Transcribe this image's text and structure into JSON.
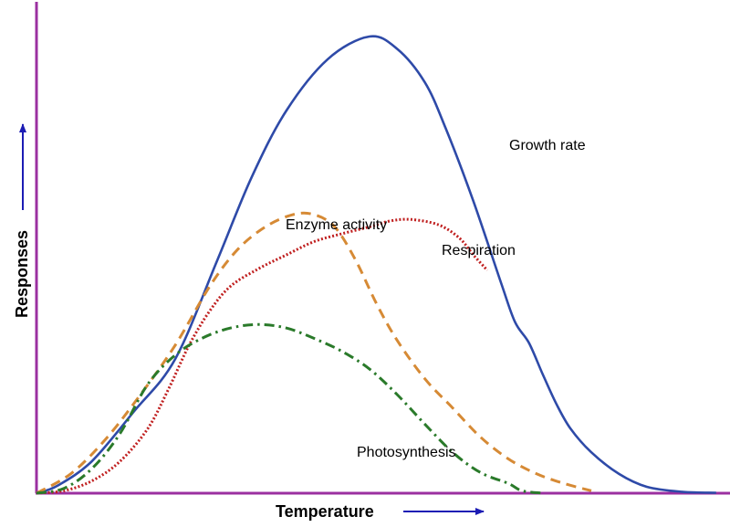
{
  "chart_data": {
    "type": "line",
    "title": "",
    "xlabel": "Temperature",
    "ylabel": "Responses",
    "xlim": [
      0,
      100
    ],
    "ylim": [
      0,
      100
    ],
    "grid": false,
    "legend": "none (inline curve labels)",
    "colors": {
      "axis": "#9b30a0",
      "arrow": "#1c1cb4"
    },
    "series": [
      {
        "name": "Growth rate",
        "color": "#2e4aa8",
        "dash": "solid",
        "x": [
          0,
          3,
          8,
          14,
          20,
          26,
          31,
          36,
          42,
          48,
          52,
          56,
          59,
          63,
          67,
          69,
          71,
          73,
          75,
          77,
          80,
          84,
          88,
          93,
          98
        ],
        "y": [
          0,
          1.5,
          6.5,
          16.5,
          27.2,
          47,
          64,
          77.5,
          88,
          92.6,
          90.1,
          83.3,
          74,
          59.2,
          42.6,
          34.7,
          30.5,
          24.1,
          18,
          13.1,
          8.3,
          3.9,
          1.3,
          0.3,
          0.1
        ]
      },
      {
        "name": "Enzyme activity",
        "color": "#d68a35",
        "dash": "dashed",
        "x": [
          0,
          5,
          10,
          15,
          20,
          25,
          29,
          33,
          37,
          40,
          43,
          46,
          49,
          52,
          56,
          60,
          64,
          68,
          72,
          76,
          80
        ],
        "y": [
          0,
          4,
          11,
          20,
          30,
          42,
          49.4,
          54,
          56.5,
          56.5,
          54,
          47.3,
          38.5,
          31,
          23.2,
          17.3,
          11.4,
          7,
          4,
          2,
          0.5
        ]
      },
      {
        "name": "Respiration",
        "color": "#c02020",
        "dash": "dotted",
        "x": [
          0,
          4,
          8,
          12,
          16,
          19,
          22,
          25,
          28,
          32,
          36,
          40,
          44,
          48,
          51,
          54,
          58,
          61,
          63,
          65
        ],
        "y": [
          0,
          0.5,
          2.5,
          6.4,
          13,
          21,
          30,
          37,
          42,
          45.5,
          48.3,
          51,
          52.6,
          54,
          55.2,
          55.5,
          54.4,
          51.7,
          48.3,
          45.2
        ]
      },
      {
        "name": "Photosynthesis",
        "color": "#2a7a2a",
        "dash": "dash-dot",
        "x": [
          0,
          4,
          8,
          12,
          16,
          20,
          24,
          28,
          32,
          36,
          40,
          44,
          48,
          52,
          56,
          60,
          64,
          68,
          70,
          73
        ],
        "y": [
          0,
          1,
          5,
          12,
          22,
          28,
          31.5,
          33.5,
          34.2,
          33.5,
          31.4,
          28.8,
          25.2,
          20,
          14,
          8.3,
          4.2,
          2,
          0.5,
          0
        ]
      }
    ],
    "annotations": [
      {
        "text": "Growth rate",
        "near_series": "Growth rate"
      },
      {
        "text": "Enzyme activity",
        "near_series": "Enzyme activity"
      },
      {
        "text": "Respiration",
        "near_series": "Respiration"
      },
      {
        "text": "Photosynthesis",
        "near_series": "Photosynthesis"
      }
    ]
  }
}
